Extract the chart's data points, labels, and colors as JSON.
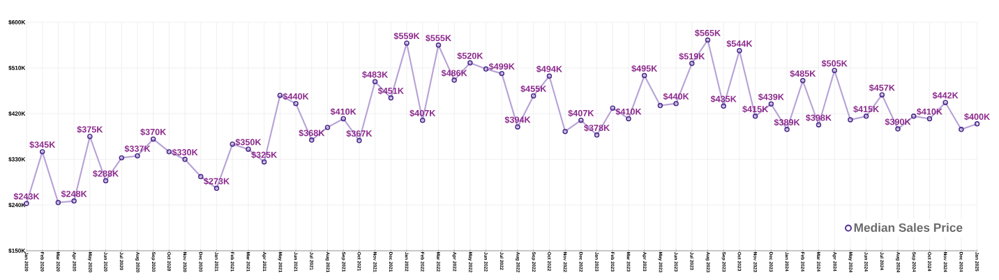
{
  "chart_data": {
    "type": "line",
    "categories": [
      "Jan 2020",
      "Feb 2020",
      "Mar 2020",
      "Apr 2020",
      "May 2020",
      "Jun 2020",
      "Jul 2020",
      "Aug 2020",
      "Sep 2020",
      "Oct 2020",
      "Nov 2020",
      "Dec 2020",
      "Jan 2021",
      "Feb 2021",
      "Mar 2021",
      "Apr 2021",
      "May 2021",
      "Jun 2021",
      "Jul 2021",
      "Aug 2021",
      "Sep 2021",
      "Oct 2021",
      "Nov 2021",
      "Dec 2021",
      "Jan 2022",
      "Feb 2022",
      "Mar 2022",
      "Apr 2022",
      "May 2022",
      "Jun 2022",
      "Jul 2022",
      "Aug 2022",
      "Sep 2022",
      "Oct 2022",
      "Nov 2022",
      "Dec 2022",
      "Jan 2023",
      "Feb 2023",
      "Mar 2023",
      "Apr 2023",
      "May 2023",
      "Jun 2023",
      "Jul 2023",
      "Aug 2023",
      "Sep 2023",
      "Oct 2023",
      "Nov 2023",
      "Dec 2023",
      "Jan 2024",
      "Feb 2024",
      "Mar 2024",
      "Apr 2024",
      "May 2024",
      "Jun 2024",
      "Jul 2024",
      "Aug 2024",
      "Sep 2024",
      "Oct 2024",
      "Nov 2024",
      "Dec 2024",
      "Jan 2025"
    ],
    "series": [
      {
        "name": "Median Sales Price",
        "color": "#b7a2d6",
        "values": [
          243,
          345,
          245,
          248,
          375,
          288,
          333,
          337,
          370,
          345,
          330,
          296,
          273,
          360,
          350,
          325,
          456,
          440,
          368,
          393,
          410,
          367,
          483,
          451,
          559,
          407,
          555,
          486,
          520,
          508,
          499,
          394,
          455,
          494,
          385,
          407,
          378,
          431,
          410,
          495,
          436,
          440,
          519,
          565,
          435,
          544,
          415,
          439,
          389,
          485,
          398,
          505,
          408,
          415,
          457,
          390,
          415,
          410,
          442,
          389,
          400
        ],
        "value_labels": [
          "$243K",
          "$345K",
          null,
          "$248K",
          "$375K",
          "$288K",
          null,
          "$337K",
          "$370K",
          null,
          "$330K",
          null,
          "$273K",
          null,
          "$350K",
          "$325K",
          null,
          "$440K",
          "$368K",
          null,
          "$410K",
          "$367K",
          "$483K",
          "$451K",
          "$559K",
          "$407K",
          "$555K",
          "$486K",
          "$520K",
          null,
          "$499K",
          "$394K",
          "$455K",
          "$494K",
          null,
          "$407K",
          "$378K",
          null,
          "$410K",
          "$495K",
          null,
          "$440K",
          "$519K",
          "$565K",
          "$435K",
          "$544K",
          "$415K",
          "$439K",
          "$389K",
          "$485K",
          "$398K",
          "$505K",
          null,
          "$415K",
          "$457K",
          "$390K",
          null,
          "$410K",
          "$442K",
          null,
          "$400K"
        ]
      }
    ],
    "ylim": [
      150,
      600
    ],
    "yticks": [
      {
        "value": 150,
        "label": "$150K"
      },
      {
        "value": 240,
        "label": "$240K"
      },
      {
        "value": 330,
        "label": "$330K"
      },
      {
        "value": 420,
        "label": "$420K"
      },
      {
        "value": 510,
        "label": "$510K"
      },
      {
        "value": 600,
        "label": "$600K"
      }
    ],
    "grid": true,
    "marker": "circle",
    "legend": "bottom right"
  }
}
